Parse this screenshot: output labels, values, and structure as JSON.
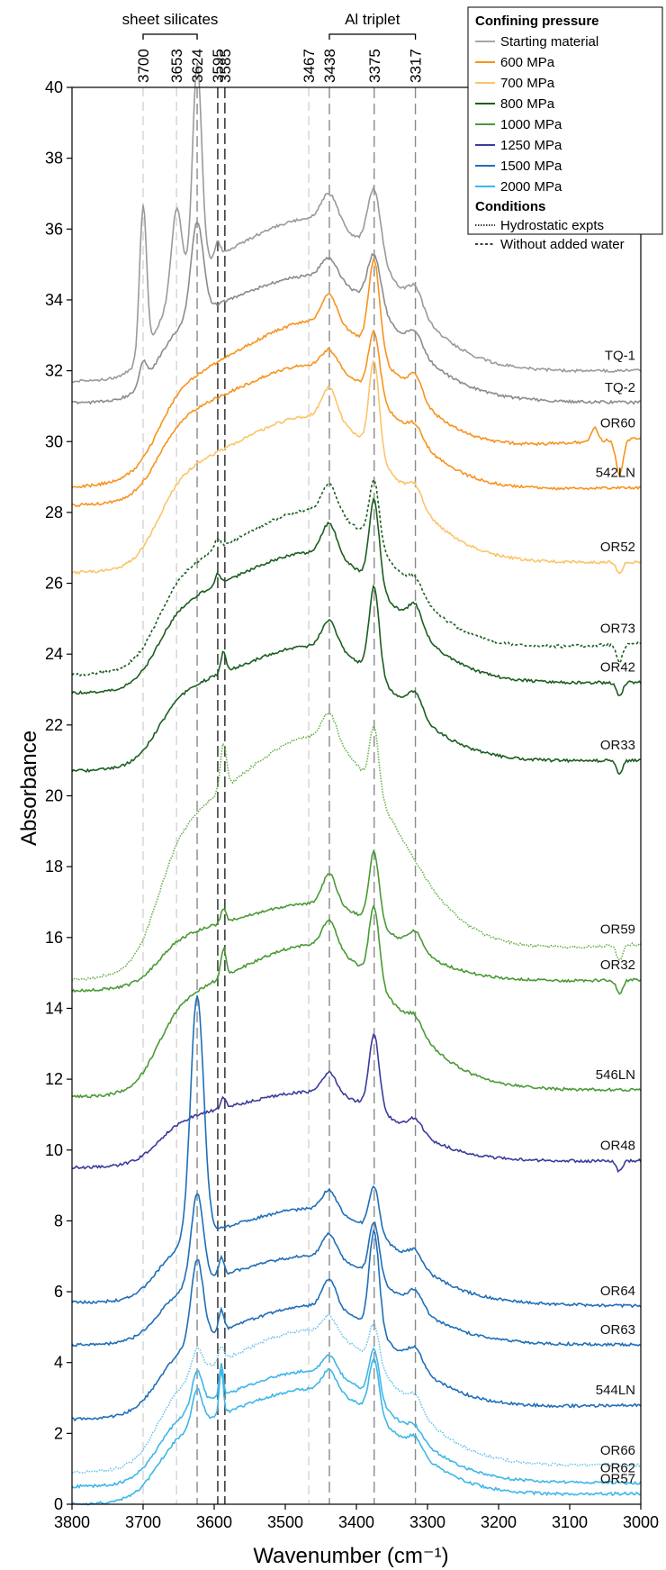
{
  "chart_data": {
    "type": "line",
    "xlabel": "Wavenumber (cm⁻¹)",
    "ylabel": "Absorbance",
    "xlim": [
      3800,
      3000
    ],
    "ylim": [
      0,
      40
    ],
    "x_reversed": true,
    "xticks": [
      "3800",
      "3700",
      "3600",
      "3500",
      "3400",
      "3300",
      "3200",
      "3100",
      "3000"
    ],
    "yticks": [
      "0",
      "2",
      "4",
      "6",
      "8",
      "10",
      "12",
      "14",
      "16",
      "18",
      "20",
      "22",
      "24",
      "26",
      "28",
      "30",
      "32",
      "34",
      "36",
      "38",
      "40"
    ],
    "grid": false,
    "groups": [
      {
        "label": "sheet silicates",
        "from": 3700,
        "to": 3624
      },
      {
        "label": "Al triplet",
        "from": 3438,
        "to": 3317
      }
    ],
    "reference_lines": [
      {
        "x": 3700,
        "label": "3700",
        "style": "light"
      },
      {
        "x": 3653,
        "label": "3653",
        "style": "light"
      },
      {
        "x": 3624,
        "label": "3624",
        "style": "medium"
      },
      {
        "x": 3595,
        "label": "3595",
        "style": "dark"
      },
      {
        "x": 3585,
        "label": "3585",
        "style": "dark"
      },
      {
        "x": 3467,
        "label": "3467",
        "style": "light"
      },
      {
        "x": 3438,
        "label": "3438",
        "style": "medium"
      },
      {
        "x": 3375,
        "label": "3375",
        "style": "medium"
      },
      {
        "x": 3317,
        "label": "3317",
        "style": "medium"
      }
    ],
    "legend": {
      "position": "top-right",
      "pressure_title": "Confining pressure",
      "pressure_items": [
        {
          "label": "Starting material",
          "color": "#a6a6a6"
        },
        {
          "label": "600 MPa",
          "color": "#f7931e"
        },
        {
          "label": "700 MPa",
          "color": "#fcc46b"
        },
        {
          "label": "800 MPa",
          "color": "#1b5e20"
        },
        {
          "label": "1000 MPa",
          "color": "#4a9a35"
        },
        {
          "label": "1250 MPa",
          "color": "#3b3b9c"
        },
        {
          "label": "1500 MPa",
          "color": "#1f6fb8"
        },
        {
          "label": "2000 MPa",
          "color": "#3fb6e8"
        }
      ],
      "conditions_title": "Conditions",
      "condition_items": [
        {
          "label": "Hydrostatic expts",
          "dash": "1.5,1.5"
        },
        {
          "label": "Without added water",
          "dash": "3,2.5"
        }
      ]
    },
    "series": [
      {
        "name": "TQ-1",
        "color": "#9a9a9a",
        "dash": "",
        "base": 31.7,
        "end": 32.0,
        "hump": 5.0,
        "humpShift": 0,
        "peaks": [
          [
            3700,
            4.2,
            7
          ],
          [
            3653,
            2.3,
            10
          ],
          [
            3624,
            5.8,
            9
          ],
          [
            3595,
            0.4,
            5
          ],
          [
            3438,
            0.8,
            16
          ],
          [
            3375,
            1.9,
            13
          ],
          [
            3317,
            0.6,
            14
          ]
        ]
      },
      {
        "name": "TQ-2",
        "color": "#8c8c8c",
        "dash": "",
        "base": 31.1,
        "end": 31.1,
        "hump": 4.0,
        "humpShift": 0,
        "peaks": [
          [
            3700,
            0.6,
            7
          ],
          [
            3624,
            2.6,
            12
          ],
          [
            3438,
            0.6,
            16
          ],
          [
            3375,
            1.5,
            13
          ],
          [
            3317,
            0.5,
            14
          ]
        ]
      },
      {
        "name": "OR60",
        "color": "#f7931e",
        "dash": "",
        "base": 28.7,
        "end": 30.1,
        "hump": 4.6,
        "humpShift": 0,
        "peaks": [
          [
            3438,
            0.8,
            15
          ],
          [
            3375,
            2.6,
            11
          ],
          [
            3317,
            0.6,
            14
          ],
          [
            3065,
            0.4,
            6
          ],
          [
            3030,
            -1.0,
            7
          ]
        ]
      },
      {
        "name": "542LN",
        "color": "#f7931e",
        "dash": "",
        "base": 28.2,
        "end": 28.7,
        "hump": 4.2,
        "humpShift": 0,
        "peaks": [
          [
            3438,
            0.5,
            15
          ],
          [
            3375,
            1.8,
            11
          ],
          [
            3317,
            0.4,
            14
          ]
        ]
      },
      {
        "name": "OR52",
        "color": "#fcc46b",
        "dash": "",
        "base": 26.3,
        "end": 26.6,
        "hump": 4.8,
        "humpShift": 0,
        "peaks": [
          [
            3438,
            0.9,
            15
          ],
          [
            3375,
            2.6,
            10
          ],
          [
            3317,
            0.5,
            14
          ],
          [
            3030,
            -0.3,
            6
          ]
        ]
      },
      {
        "name": "OR73",
        "color": "#1b5e20",
        "dash": "3,2.5",
        "base": 23.4,
        "end": 24.3,
        "hump": 4.8,
        "humpShift": 0,
        "peaks": [
          [
            3595,
            0.3,
            6
          ],
          [
            3438,
            0.8,
            15
          ],
          [
            3375,
            1.8,
            10
          ],
          [
            3317,
            0.4,
            14
          ],
          [
            3030,
            -0.5,
            6
          ]
        ]
      },
      {
        "name": "OR42",
        "color": "#1b5e20",
        "dash": "",
        "base": 22.9,
        "end": 23.2,
        "hump": 4.3,
        "humpShift": 0,
        "peaks": [
          [
            3595,
            0.3,
            5
          ],
          [
            3438,
            0.9,
            15
          ],
          [
            3375,
            2.4,
            10
          ],
          [
            3317,
            0.7,
            14
          ],
          [
            3030,
            -0.4,
            6
          ]
        ]
      },
      {
        "name": "OR33",
        "color": "#1b5e20",
        "dash": "",
        "base": 20.7,
        "end": 21.0,
        "hump": 3.8,
        "humpShift": 0,
        "peaks": [
          [
            3587,
            0.6,
            5
          ],
          [
            3438,
            0.8,
            15
          ],
          [
            3375,
            2.5,
            10
          ],
          [
            3317,
            0.6,
            14
          ],
          [
            3030,
            -0.4,
            6
          ]
        ]
      },
      {
        "name": "OR59",
        "color": "#6ab04c",
        "dash": "1.5,1.5",
        "base": 14.8,
        "end": 15.8,
        "hump": 7.2,
        "humpShift": 0,
        "peaks": [
          [
            3587,
            1.3,
            6
          ],
          [
            3438,
            0.8,
            15
          ],
          [
            3375,
            1.8,
            9
          ],
          [
            3030,
            -0.4,
            6
          ]
        ]
      },
      {
        "name": "OR32",
        "color": "#4a9a35",
        "dash": "",
        "base": 14.5,
        "end": 14.8,
        "hump": 2.6,
        "humpShift": 0,
        "peaks": [
          [
            3587,
            0.4,
            5
          ],
          [
            3438,
            0.9,
            14
          ],
          [
            3375,
            2.0,
            10
          ],
          [
            3317,
            0.5,
            14
          ],
          [
            3030,
            -0.4,
            6
          ]
        ]
      },
      {
        "name": "546LN",
        "color": "#4a9a35",
        "dash": "",
        "base": 11.5,
        "end": 11.7,
        "hump": 4.7,
        "humpShift": 0,
        "peaks": [
          [
            3587,
            0.8,
            5
          ],
          [
            3438,
            0.8,
            14
          ],
          [
            3375,
            2.1,
            10
          ],
          [
            3317,
            0.4,
            14
          ]
        ]
      },
      {
        "name": "OR48",
        "color": "#3b3b9c",
        "dash": "",
        "base": 9.5,
        "end": 9.7,
        "hump": 2.3,
        "humpShift": 0,
        "peaks": [
          [
            3587,
            0.3,
            5
          ],
          [
            3438,
            0.6,
            14
          ],
          [
            3375,
            2.1,
            10
          ],
          [
            3317,
            0.4,
            14
          ],
          [
            3030,
            -0.3,
            6
          ]
        ]
      },
      {
        "name": "OR64",
        "color": "#1f6fb8",
        "dash": "",
        "base": 5.7,
        "end": 5.6,
        "hump": 3.0,
        "humpShift": 0,
        "peaks": [
          [
            3624,
            6.8,
            13
          ],
          [
            3438,
            0.6,
            14
          ],
          [
            3375,
            1.3,
            10
          ],
          [
            3317,
            0.4,
            14
          ]
        ]
      },
      {
        "name": "OR63",
        "color": "#1f6fb8",
        "dash": "",
        "base": 4.5,
        "end": 4.5,
        "hump": 2.8,
        "humpShift": 0,
        "peaks": [
          [
            3624,
            2.5,
            12
          ],
          [
            3590,
            0.5,
            5
          ],
          [
            3438,
            0.7,
            14
          ],
          [
            3375,
            1.6,
            10
          ],
          [
            3317,
            0.5,
            14
          ]
        ]
      },
      {
        "name": "544LN",
        "color": "#1f6fb8",
        "dash": "",
        "base": 2.4,
        "end": 2.8,
        "hump": 3.4,
        "humpShift": 0,
        "peaks": [
          [
            3624,
            2.3,
            12
          ],
          [
            3590,
            0.6,
            5
          ],
          [
            3438,
            0.8,
            14
          ],
          [
            3375,
            2.8,
            10
          ],
          [
            3317,
            0.5,
            14
          ]
        ]
      },
      {
        "name": "OR66",
        "color": "#6cc4ec",
        "dash": "1.5,1.5",
        "base": 0.9,
        "end": 1.1,
        "hump": 4.4,
        "humpShift": 0,
        "peaks": [
          [
            3624,
            0.7,
            10
          ],
          [
            3590,
            0.4,
            5
          ],
          [
            3438,
            0.5,
            14
          ],
          [
            3375,
            1.1,
            10
          ],
          [
            3317,
            0.4,
            14
          ]
        ]
      },
      {
        "name": "OR62",
        "color": "#3fb6e8",
        "dash": "",
        "base": 0.5,
        "end": 0.6,
        "hump": 3.6,
        "humpShift": 0,
        "peaks": [
          [
            3624,
            1.0,
            10
          ],
          [
            3590,
            0.9,
            4
          ],
          [
            3438,
            0.5,
            14
          ],
          [
            3375,
            1.4,
            10
          ],
          [
            3317,
            0.3,
            14
          ]
        ]
      },
      {
        "name": "OR57",
        "color": "#3fb6e8",
        "dash": "",
        "base": 0.0,
        "end": 0.3,
        "hump": 3.5,
        "humpShift": 0,
        "peaks": [
          [
            3624,
            1.0,
            10
          ],
          [
            3590,
            1.3,
            4
          ],
          [
            3438,
            0.6,
            14
          ],
          [
            3375,
            1.6,
            10
          ],
          [
            3317,
            0.4,
            14
          ]
        ]
      }
    ]
  }
}
